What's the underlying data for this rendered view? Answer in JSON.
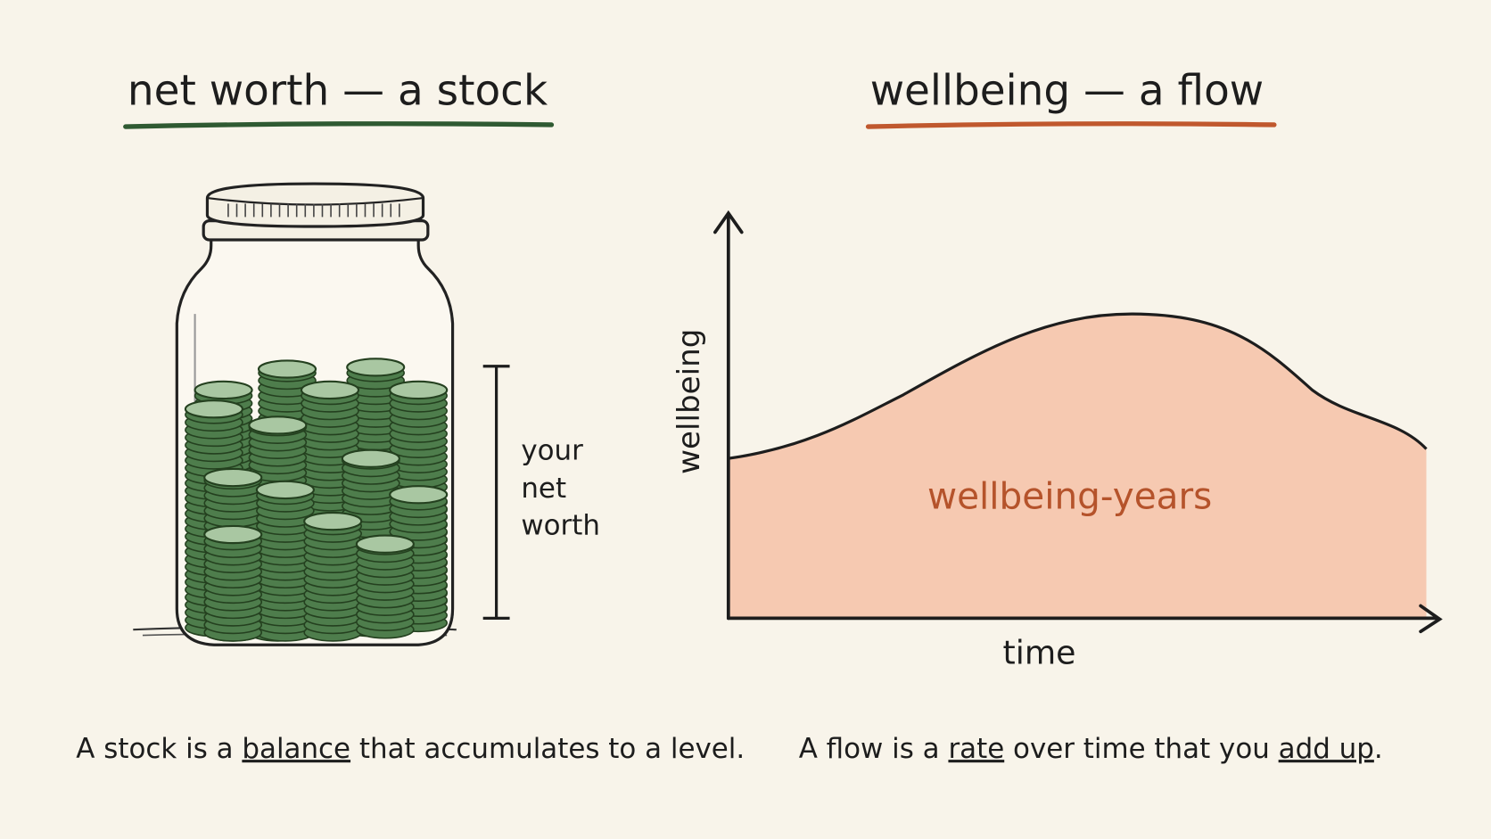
{
  "left": {
    "title": "net worth — a stock",
    "label_lines": [
      "your",
      "net",
      "worth"
    ],
    "caption": {
      "before": "A stock is a ",
      "emphasis": "balance",
      "after": " that accumulates to a level."
    }
  },
  "right": {
    "title": "wellbeing — a flow",
    "y_axis_label": "wellbeing",
    "x_axis_label": "time",
    "area_label": "wellbeing-years",
    "caption": {
      "before": "A flow is a ",
      "emphasis": "rate",
      "middle": " over time that you ",
      "emphasis2": "add up",
      "after": "."
    }
  }
}
